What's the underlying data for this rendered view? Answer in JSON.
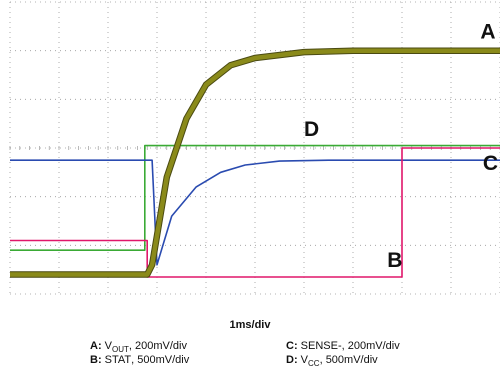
{
  "chart_data": {
    "type": "line",
    "timebase": "1ms/div",
    "grid": true,
    "divisions": {
      "x": 10,
      "y": 6
    },
    "x": [
      0,
      2.8,
      2.8,
      10
    ],
    "series": [
      {
        "name": "A",
        "color": "#8a8a1a",
        "marker_label": "A",
        "description": "VOUT exponential rise",
        "x": [
          0,
          2.8,
          2.9,
          3.2,
          3.6,
          4.0,
          4.5,
          5.0,
          6.0,
          7.0,
          10.0
        ],
        "y": [
          0.4,
          0.4,
          0.6,
          2.4,
          3.6,
          4.3,
          4.7,
          4.85,
          4.97,
          5.0,
          5.0
        ]
      },
      {
        "name": "B",
        "color": "#e0176a",
        "marker_label": "B",
        "x": [
          0,
          2.8,
          2.8,
          8.0,
          8.0,
          10.0
        ],
        "y": [
          1.1,
          1.1,
          0.35,
          0.35,
          3.0,
          3.0
        ]
      },
      {
        "name": "C",
        "color": "#2a4bb0",
        "marker_label": "C",
        "x": [
          0,
          2.9,
          3.0,
          3.3,
          3.8,
          4.3,
          4.8,
          5.5,
          6.5,
          10.0
        ],
        "y": [
          2.75,
          2.75,
          0.6,
          1.6,
          2.2,
          2.5,
          2.65,
          2.73,
          2.75,
          2.75
        ]
      },
      {
        "name": "D",
        "color": "#3aaa35",
        "marker_label": "D",
        "x": [
          0,
          2.75,
          2.75,
          10.0
        ],
        "y": [
          0.9,
          0.9,
          3.05,
          3.05
        ]
      }
    ],
    "legend": [
      {
        "key": "A:",
        "signal": "V",
        "sub": "OUT",
        "scale": ", 200mV/div"
      },
      {
        "key": "B:",
        "signal": "STAT",
        "sub": "",
        "scale": ", 500mV/div"
      },
      {
        "key": "C:",
        "signal": "SENSE-",
        "sub": "",
        "scale": ", 200mV/div"
      },
      {
        "key": "D:",
        "signal": "V",
        "sub": "CC",
        "scale": ", 500mV/div"
      }
    ]
  }
}
